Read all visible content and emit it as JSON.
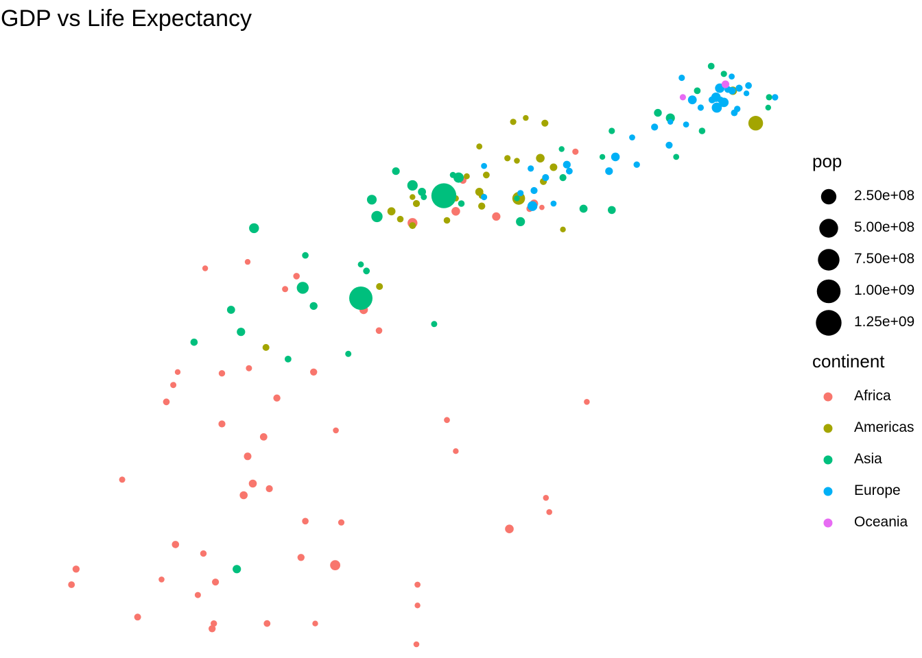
{
  "chart_data": {
    "type": "scatter",
    "title": "GDP vs Life Expectancy",
    "xlabel": "",
    "ylabel": "",
    "axes_visible": false,
    "grid": false,
    "x_scale": "log10",
    "xlim": [
      200,
      52000
    ],
    "ylim": [
      38,
      84
    ],
    "size_legend": {
      "title": "pop",
      "breaks": [
        250000000,
        500000000,
        750000000,
        1000000000,
        1250000000
      ],
      "labels": [
        "2.50e+08",
        "5.00e+08",
        "7.50e+08",
        "1.00e+09",
        "1.25e+09"
      ]
    },
    "color_legend": {
      "title": "continent",
      "placement": "right",
      "entries": [
        {
          "name": "Africa",
          "color": "#F8766D"
        },
        {
          "name": "Americas",
          "color": "#A3A500"
        },
        {
          "name": "Asia",
          "color": "#00BF7D"
        },
        {
          "name": "Europe",
          "color": "#00B0F6"
        },
        {
          "name": "Oceania",
          "color": "#E76BF3"
        }
      ]
    },
    "series": [
      {
        "name": "Africa",
        "points": [
          [
            5060,
            73.8,
            12000000
          ],
          [
            8500,
            72.0,
            27000000
          ],
          [
            9000,
            71.7,
            100000
          ],
          [
            8230,
            71.6,
            5000000
          ],
          [
            4800,
            71.4,
            40000000
          ],
          [
            6450,
            71.0,
            34000000
          ],
          [
            11500,
            76.0,
            4000000
          ],
          [
            3500,
            70.5,
            74000000
          ],
          [
            770,
            67.0,
            900000
          ],
          [
            1050,
            67.5,
            1000000
          ],
          [
            1500,
            66.4,
            6000000
          ],
          [
            1380,
            65.4,
            3000000
          ],
          [
            2450,
            63.8,
            36000000
          ],
          [
            2740,
            62.2,
            6000000
          ],
          [
            1060,
            59.3,
            3000000
          ],
          [
            1700,
            59.0,
            13000000
          ],
          [
            630,
            59.0,
            1000000
          ],
          [
            870,
            58.9,
            5000000
          ],
          [
            610,
            58.0,
            3000000
          ],
          [
            580,
            56.7,
            8000000
          ],
          [
            1300,
            57.0,
            12000000
          ],
          [
            870,
            55.0,
            11000000
          ],
          [
            2000,
            54.5,
            1500000
          ],
          [
            4500,
            55.3,
            2500000
          ],
          [
            1180,
            54.0,
            16000000
          ],
          [
            12500,
            56.7,
            1800000
          ],
          [
            4800,
            52.9,
            1000000
          ],
          [
            1050,
            52.5,
            18000000
          ],
          [
            420,
            50.7,
            3000000
          ],
          [
            1090,
            50.4,
            24000000
          ],
          [
            1230,
            50.0,
            10000000
          ],
          [
            1020,
            49.5,
            24000000
          ],
          [
            9270,
            49.3,
            1600000
          ],
          [
            9500,
            48.2,
            1600000
          ],
          [
            1600,
            47.5,
            6000000
          ],
          [
            2080,
            47.4,
            4000000
          ],
          [
            7100,
            46.9,
            40000000
          ],
          [
            620,
            45.7,
            14000000
          ],
          [
            760,
            45.0,
            5000000
          ],
          [
            1550,
            44.7,
            12000000
          ],
          [
            1990,
            44.1,
            80000000
          ],
          [
            300,
            43.8,
            12000000
          ],
          [
            560,
            43.0,
            1500000
          ],
          [
            830,
            42.8,
            10000000
          ],
          [
            290,
            42.6,
            7000000
          ],
          [
            730,
            41.8,
            3000000
          ],
          [
            3630,
            41.0,
            1200000
          ],
          [
            470,
            40.1,
            9000000
          ],
          [
            820,
            39.6,
            5000000
          ],
          [
            1210,
            39.6,
            8000000
          ],
          [
            1720,
            39.6,
            1000000
          ],
          [
            810,
            39.2,
            13000000
          ],
          [
            3630,
            42.6,
            2000000
          ],
          [
            3600,
            38.0,
            1500000
          ],
          [
            1100,
            70.0,
            1000000
          ]
        ]
      },
      {
        "name": "Americas",
        "points": [
          [
            7300,
            78.3,
            4000000
          ],
          [
            8000,
            78.6,
            1000000
          ],
          [
            9200,
            78.2,
            10000000
          ],
          [
            5700,
            76.4,
            2000000
          ],
          [
            8900,
            75.5,
            40000000
          ],
          [
            7000,
            75.5,
            4000000
          ],
          [
            7500,
            75.3,
            1500000
          ],
          [
            9800,
            74.8,
            19000000
          ],
          [
            6000,
            74.2,
            8000000
          ],
          [
            5200,
            74.1,
            2000000
          ],
          [
            9100,
            73.7,
            10000000
          ],
          [
            4200,
            72.8,
            500000
          ],
          [
            5700,
            72.9,
            27000000
          ],
          [
            5800,
            72.6,
            2500000
          ],
          [
            4800,
            72.4,
            3000000
          ],
          [
            7600,
            72.4,
            190000000
          ],
          [
            4200,
            72.2,
            4000000
          ],
          [
            5800,
            71.8,
            12000000
          ],
          [
            3600,
            72.0,
            11000000
          ],
          [
            3000,
            71.4,
            29000000
          ],
          [
            3200,
            70.8,
            6000000
          ],
          [
            4500,
            70.7,
            6000000
          ],
          [
            3500,
            70.3,
            9000000
          ],
          [
            10500,
            70.0,
            1000000
          ],
          [
            36300,
            80.7,
            33000000
          ],
          [
            42900,
            78.2,
            301000000
          ],
          [
            2750,
            65.6,
            9000000
          ],
          [
            1200,
            60.9,
            8500000
          ],
          [
            3500,
            72.5,
            1000000
          ]
        ]
      },
      {
        "name": "Asia",
        "points": [
          [
            31000,
            82.6,
            7000000
          ],
          [
            34000,
            82.0,
            4000000
          ],
          [
            28000,
            80.7,
            7000000
          ],
          [
            47300,
            80.2,
            4500000
          ],
          [
            47000,
            79.4,
            1000000
          ],
          [
            21000,
            79.0,
            22000000
          ],
          [
            23000,
            78.6,
            49000000
          ],
          [
            15000,
            77.6,
            4000000
          ],
          [
            29000,
            77.6,
            6000000
          ],
          [
            24000,
            75.6,
            2500000
          ],
          [
            14000,
            75.6,
            1000000
          ],
          [
            4700,
            74.2,
            3000000
          ],
          [
            4900,
            74.0,
            85000000
          ],
          [
            3100,
            74.5,
            20000000
          ],
          [
            3500,
            73.4,
            90000000
          ],
          [
            10500,
            74.0,
            11000000
          ],
          [
            3750,
            72.9,
            28000000
          ],
          [
            4400,
            72.6,
            1300000000
          ],
          [
            7500,
            72.4,
            1000000
          ],
          [
            2600,
            72.3,
            70000000
          ],
          [
            3800,
            72.5,
            3000000
          ],
          [
            5000,
            72.0,
            6000000
          ],
          [
            12200,
            71.6,
            27000000
          ],
          [
            15000,
            71.5,
            25000000
          ],
          [
            7700,
            70.6,
            48000000
          ],
          [
            2700,
            71.0,
            120000000
          ],
          [
            1100,
            70.1,
            71000000
          ],
          [
            1600,
            68.0,
            6000000
          ],
          [
            2400,
            67.3,
            2500000
          ],
          [
            2500,
            66.8,
            7000000
          ],
          [
            1570,
            65.5,
            150000000
          ],
          [
            2400,
            64.7,
            1100000000
          ],
          [
            1700,
            64.1,
            23000000
          ],
          [
            4100,
            62.7,
            3000000
          ],
          [
            930,
            63.8,
            28000000
          ],
          [
            1000,
            62.1,
            32000000
          ],
          [
            710,
            61.3,
            15000000
          ],
          [
            1410,
            60.0,
            7000000
          ],
          [
            2190,
            60.4,
            3000000
          ],
          [
            970,
            43.8,
            32000000
          ],
          [
            10400,
            76.2,
            1000000
          ]
        ]
      },
      {
        "name": "Europe",
        "points": [
          [
            36000,
            81.8,
            2000000
          ],
          [
            25000,
            81.7,
            4000000
          ],
          [
            40700,
            81.1,
            8000000
          ],
          [
            38000,
            80.9,
            11000000
          ],
          [
            33000,
            80.9,
            61000000
          ],
          [
            35000,
            80.8,
            9000000
          ],
          [
            36100,
            80.7,
            16000000
          ],
          [
            40100,
            80.5,
            1000000
          ],
          [
            32100,
            80.2,
            59000000
          ],
          [
            27000,
            80.0,
            41000000
          ],
          [
            33200,
            80.0,
            5000000
          ],
          [
            31200,
            80.0,
            10000000
          ],
          [
            33700,
            79.8,
            10000000
          ],
          [
            28700,
            79.4,
            4000000
          ],
          [
            37500,
            79.3,
            5000000
          ],
          [
            32300,
            79.4,
            82000000
          ],
          [
            36700,
            79.0,
            8000000
          ],
          [
            49400,
            80.2,
            5000000
          ],
          [
            34000,
            79.8,
            60000000
          ],
          [
            25800,
            78.1,
            2000000
          ],
          [
            20500,
            77.9,
            10000000
          ],
          [
            23000,
            78.3,
            800000
          ],
          [
            17400,
            77.1,
            2000000
          ],
          [
            22800,
            76.5,
            10000000
          ],
          [
            15400,
            75.6,
            38000000
          ],
          [
            18000,
            75.0,
            5000000
          ],
          [
            10800,
            75.0,
            20000000
          ],
          [
            11000,
            74.5,
            7000000
          ],
          [
            9250,
            74.0,
            10000000
          ],
          [
            8300,
            74.7,
            4500000
          ],
          [
            5900,
            74.9,
            2000000
          ],
          [
            14700,
            74.5,
            21000000
          ],
          [
            8500,
            73.0,
            10000000
          ],
          [
            7700,
            72.8,
            4000000
          ],
          [
            5900,
            72.5,
            4000000
          ],
          [
            9800,
            72.0,
            2000000
          ],
          [
            8400,
            71.8,
            71000000
          ]
        ]
      },
      {
        "name": "Oceania",
        "points": [
          [
            34400,
            81.2,
            20000000
          ],
          [
            25200,
            80.2,
            4000000
          ]
        ]
      }
    ]
  }
}
